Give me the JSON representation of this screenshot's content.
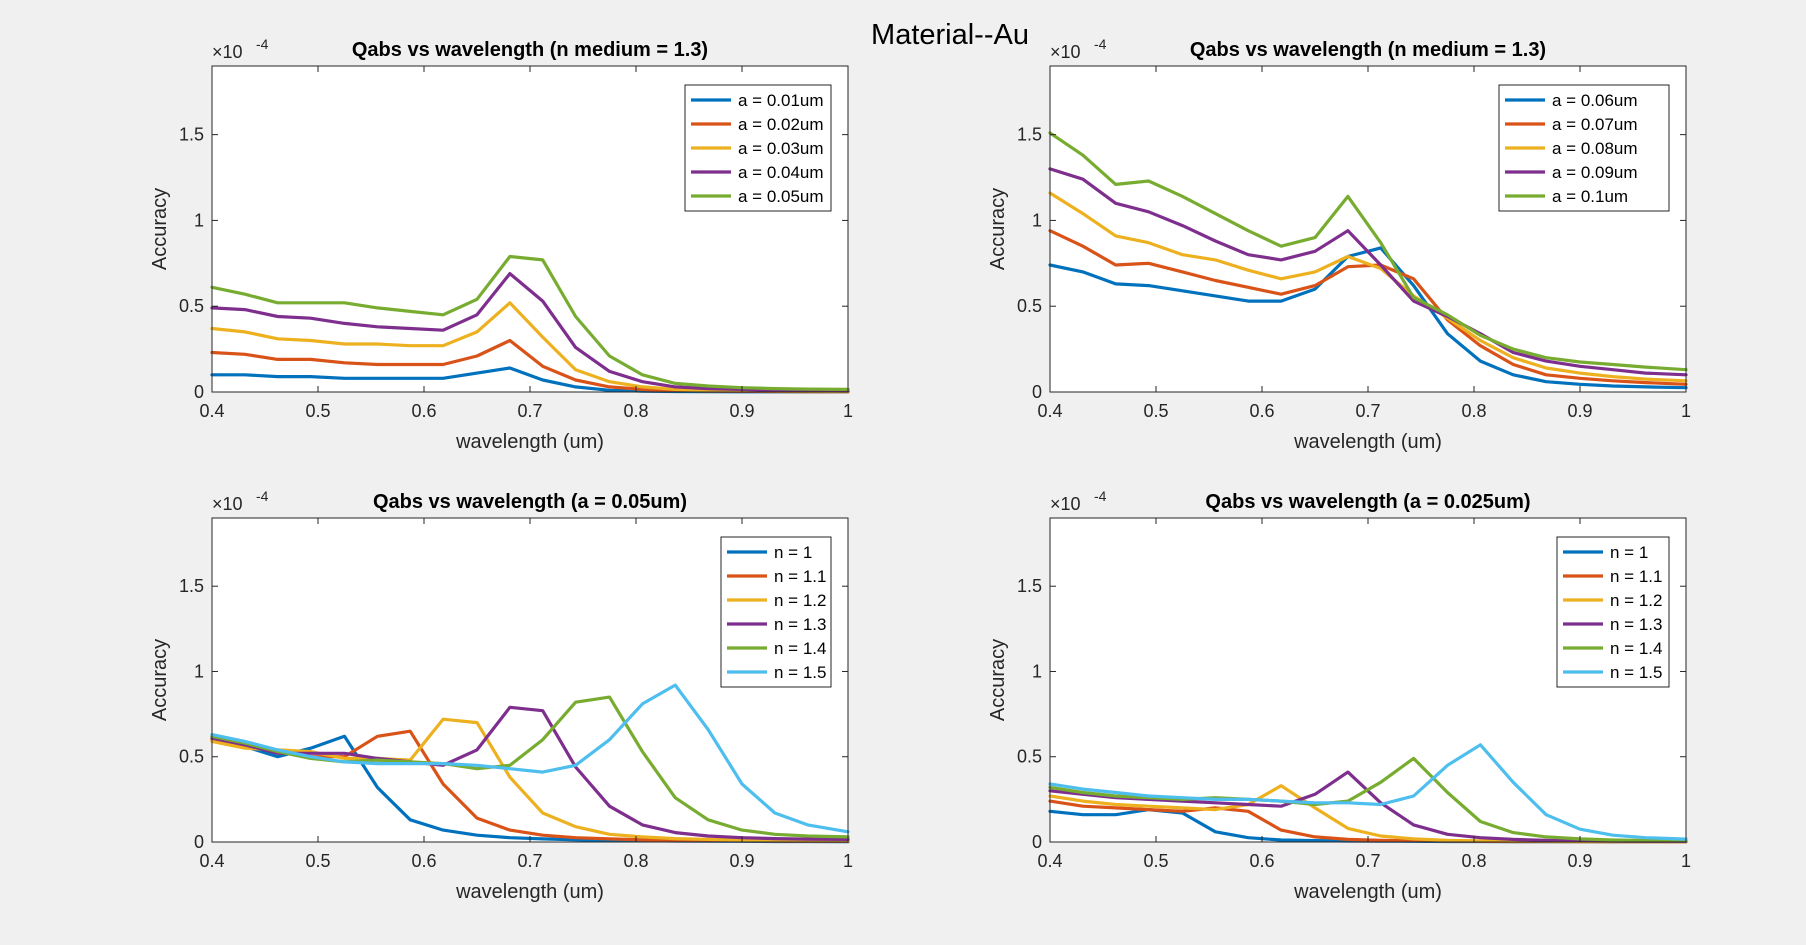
{
  "figure": {
    "suptitle": "Material--Au",
    "background": "#f0f0f0"
  },
  "colors": [
    "#0072BD",
    "#D95319",
    "#EDB120",
    "#7E2F8E",
    "#77AC30",
    "#4DBEEE"
  ],
  "chart_data": [
    {
      "type": "line",
      "title": "Qabs vs wavelength (n medium = 1.3)",
      "xlabel": "wavelength (um)",
      "ylabel": "Accuracy",
      "xlim": [
        0.4,
        1.0
      ],
      "ylim": [
        0,
        1.9
      ],
      "exponent_label": "×10",
      "exponent_power": "-4",
      "xticks": [
        0.4,
        0.5,
        0.6,
        0.7,
        0.8,
        0.9,
        1.0
      ],
      "xtick_labels": [
        "0.4",
        "0.5",
        "0.6",
        "0.7",
        "0.8",
        "0.9",
        "1"
      ],
      "yticks": [
        0,
        0.5,
        1.0,
        1.5
      ],
      "ytick_labels": [
        "0",
        "0.5",
        "1",
        "1.5"
      ],
      "grid": false,
      "legend_position": "top-right",
      "x": [
        0.4,
        0.431,
        0.462,
        0.493,
        0.525,
        0.556,
        0.587,
        0.618,
        0.65,
        0.681,
        0.712,
        0.743,
        0.775,
        0.806,
        0.837,
        0.868,
        0.9,
        0.931,
        0.962,
        1.0
      ],
      "series": [
        {
          "name": "a = 0.01um",
          "values": [
            0.1,
            0.1,
            0.09,
            0.09,
            0.08,
            0.08,
            0.08,
            0.08,
            0.11,
            0.14,
            0.07,
            0.03,
            0.01,
            0.005,
            0.003,
            0.002,
            0.001,
            0.001,
            0.001,
            0.001
          ]
        },
        {
          "name": "a = 0.02um",
          "values": [
            0.23,
            0.22,
            0.19,
            0.19,
            0.17,
            0.16,
            0.16,
            0.16,
            0.21,
            0.3,
            0.15,
            0.07,
            0.03,
            0.015,
            0.008,
            0.005,
            0.004,
            0.003,
            0.002,
            0.002
          ]
        },
        {
          "name": "a = 0.03um",
          "values": [
            0.37,
            0.35,
            0.31,
            0.3,
            0.28,
            0.28,
            0.27,
            0.27,
            0.35,
            0.52,
            0.32,
            0.13,
            0.06,
            0.03,
            0.015,
            0.01,
            0.007,
            0.005,
            0.004,
            0.003
          ]
        },
        {
          "name": "a = 0.04um",
          "values": [
            0.49,
            0.48,
            0.44,
            0.43,
            0.4,
            0.38,
            0.37,
            0.36,
            0.45,
            0.69,
            0.53,
            0.26,
            0.12,
            0.06,
            0.03,
            0.02,
            0.015,
            0.01,
            0.008,
            0.006
          ]
        },
        {
          "name": "a = 0.05um",
          "values": [
            0.61,
            0.57,
            0.52,
            0.52,
            0.52,
            0.49,
            0.47,
            0.45,
            0.54,
            0.79,
            0.77,
            0.44,
            0.21,
            0.1,
            0.05,
            0.035,
            0.025,
            0.02,
            0.017,
            0.015
          ]
        }
      ]
    },
    {
      "type": "line",
      "title": "Qabs vs wavelength (n medium = 1.3)",
      "xlabel": "wavelength (um)",
      "ylabel": "Accuracy",
      "xlim": [
        0.4,
        1.0
      ],
      "ylim": [
        0,
        1.9
      ],
      "exponent_label": "×10",
      "exponent_power": "-4",
      "xticks": [
        0.4,
        0.5,
        0.6,
        0.7,
        0.8,
        0.9,
        1.0
      ],
      "xtick_labels": [
        "0.4",
        "0.5",
        "0.6",
        "0.7",
        "0.8",
        "0.9",
        "1"
      ],
      "yticks": [
        0,
        0.5,
        1.0,
        1.5
      ],
      "ytick_labels": [
        "0",
        "0.5",
        "1",
        "1.5"
      ],
      "grid": false,
      "legend_position": "top-right",
      "x": [
        0.4,
        0.431,
        0.462,
        0.493,
        0.525,
        0.556,
        0.587,
        0.618,
        0.65,
        0.681,
        0.712,
        0.743,
        0.775,
        0.806,
        0.837,
        0.868,
        0.9,
        0.931,
        0.962,
        1.0
      ],
      "series": [
        {
          "name": "a = 0.06um",
          "values": [
            0.74,
            0.7,
            0.63,
            0.62,
            0.59,
            0.56,
            0.53,
            0.53,
            0.6,
            0.79,
            0.84,
            0.62,
            0.34,
            0.18,
            0.1,
            0.06,
            0.045,
            0.035,
            0.03,
            0.025
          ]
        },
        {
          "name": "a = 0.07um",
          "values": [
            0.94,
            0.85,
            0.74,
            0.75,
            0.7,
            0.65,
            0.61,
            0.57,
            0.62,
            0.73,
            0.74,
            0.66,
            0.42,
            0.27,
            0.16,
            0.1,
            0.08,
            0.065,
            0.055,
            0.045
          ]
        },
        {
          "name": "a = 0.08um",
          "values": [
            1.16,
            1.04,
            0.91,
            0.87,
            0.8,
            0.77,
            0.71,
            0.66,
            0.7,
            0.79,
            0.72,
            0.56,
            0.43,
            0.3,
            0.2,
            0.14,
            0.11,
            0.09,
            0.075,
            0.065
          ]
        },
        {
          "name": "a = 0.09um",
          "values": [
            1.3,
            1.24,
            1.1,
            1.05,
            0.97,
            0.88,
            0.8,
            0.77,
            0.82,
            0.94,
            0.74,
            0.53,
            0.44,
            0.34,
            0.23,
            0.18,
            0.15,
            0.13,
            0.11,
            0.1
          ]
        },
        {
          "name": "a = 0.1um",
          "values": [
            1.51,
            1.38,
            1.21,
            1.23,
            1.14,
            1.04,
            0.94,
            0.85,
            0.9,
            1.14,
            0.87,
            0.55,
            0.45,
            0.33,
            0.25,
            0.2,
            0.175,
            0.16,
            0.145,
            0.13
          ]
        }
      ]
    },
    {
      "type": "line",
      "title": "Qabs vs wavelength (a = 0.05um)",
      "xlabel": "wavelength (um)",
      "ylabel": "Accuracy",
      "xlim": [
        0.4,
        1.0
      ],
      "ylim": [
        0,
        1.9
      ],
      "exponent_label": "×10",
      "exponent_power": "-4",
      "xticks": [
        0.4,
        0.5,
        0.6,
        0.7,
        0.8,
        0.9,
        1.0
      ],
      "xtick_labels": [
        "0.4",
        "0.5",
        "0.6",
        "0.7",
        "0.8",
        "0.9",
        "1"
      ],
      "yticks": [
        0,
        0.5,
        1.0,
        1.5
      ],
      "ytick_labels": [
        "0",
        "0.5",
        "1",
        "1.5"
      ],
      "grid": false,
      "legend_position": "top-right",
      "x": [
        0.4,
        0.431,
        0.462,
        0.493,
        0.525,
        0.556,
        0.587,
        0.618,
        0.65,
        0.681,
        0.712,
        0.743,
        0.775,
        0.806,
        0.837,
        0.868,
        0.9,
        0.931,
        0.962,
        1.0
      ],
      "series": [
        {
          "name": "n = 1",
          "values": [
            0.62,
            0.56,
            0.5,
            0.55,
            0.62,
            0.32,
            0.13,
            0.07,
            0.04,
            0.025,
            0.018,
            0.013,
            0.01,
            0.008,
            0.006,
            0.005,
            0.004,
            0.003,
            0.003,
            0.002
          ]
        },
        {
          "name": "n = 1.1",
          "values": [
            0.6,
            0.56,
            0.53,
            0.5,
            0.5,
            0.62,
            0.65,
            0.34,
            0.14,
            0.07,
            0.04,
            0.025,
            0.018,
            0.013,
            0.01,
            0.008,
            0.006,
            0.005,
            0.004,
            0.004
          ]
        },
        {
          "name": "n = 1.2",
          "values": [
            0.59,
            0.55,
            0.54,
            0.53,
            0.49,
            0.49,
            0.48,
            0.72,
            0.7,
            0.38,
            0.17,
            0.09,
            0.045,
            0.03,
            0.02,
            0.015,
            0.012,
            0.01,
            0.008,
            0.007
          ]
        },
        {
          "name": "n = 1.3",
          "values": [
            0.61,
            0.57,
            0.52,
            0.52,
            0.52,
            0.49,
            0.47,
            0.45,
            0.54,
            0.79,
            0.77,
            0.44,
            0.21,
            0.1,
            0.055,
            0.035,
            0.025,
            0.02,
            0.017,
            0.015
          ]
        },
        {
          "name": "n = 1.4",
          "values": [
            0.62,
            0.58,
            0.53,
            0.49,
            0.47,
            0.48,
            0.47,
            0.46,
            0.43,
            0.45,
            0.6,
            0.82,
            0.85,
            0.53,
            0.26,
            0.13,
            0.07,
            0.045,
            0.035,
            0.03
          ]
        },
        {
          "name": "n = 1.5",
          "values": [
            0.63,
            0.59,
            0.54,
            0.5,
            0.47,
            0.46,
            0.46,
            0.46,
            0.45,
            0.43,
            0.41,
            0.45,
            0.6,
            0.81,
            0.92,
            0.66,
            0.34,
            0.17,
            0.1,
            0.06
          ]
        }
      ]
    },
    {
      "type": "line",
      "title": "Qabs vs wavelength (a = 0.025um)",
      "xlabel": "wavelength (um)",
      "ylabel": "Accuracy",
      "xlim": [
        0.4,
        1.0
      ],
      "ylim": [
        0,
        1.9
      ],
      "exponent_label": "×10",
      "exponent_power": "-4",
      "xticks": [
        0.4,
        0.5,
        0.6,
        0.7,
        0.8,
        0.9,
        1.0
      ],
      "xtick_labels": [
        "0.4",
        "0.5",
        "0.6",
        "0.7",
        "0.8",
        "0.9",
        "1"
      ],
      "yticks": [
        0,
        0.5,
        1.0,
        1.5
      ],
      "ytick_labels": [
        "0",
        "0.5",
        "1",
        "1.5"
      ],
      "grid": false,
      "legend_position": "top-right",
      "x": [
        0.4,
        0.431,
        0.462,
        0.493,
        0.525,
        0.556,
        0.587,
        0.618,
        0.65,
        0.681,
        0.712,
        0.743,
        0.775,
        0.806,
        0.837,
        0.868,
        0.9,
        0.931,
        0.962,
        1.0
      ],
      "series": [
        {
          "name": "n = 1",
          "values": [
            0.18,
            0.16,
            0.16,
            0.19,
            0.17,
            0.06,
            0.025,
            0.012,
            0.008,
            0.006,
            0.005,
            0.004,
            0.003,
            0.003,
            0.002,
            0.002,
            0.002,
            0.001,
            0.001,
            0.001
          ]
        },
        {
          "name": "n = 1.1",
          "values": [
            0.24,
            0.21,
            0.2,
            0.19,
            0.18,
            0.2,
            0.18,
            0.07,
            0.03,
            0.015,
            0.01,
            0.007,
            0.005,
            0.004,
            0.003,
            0.003,
            0.002,
            0.002,
            0.002,
            0.002
          ]
        },
        {
          "name": "n = 1.2",
          "values": [
            0.27,
            0.24,
            0.22,
            0.21,
            0.2,
            0.19,
            0.22,
            0.33,
            0.2,
            0.08,
            0.035,
            0.018,
            0.01,
            0.007,
            0.005,
            0.004,
            0.003,
            0.003,
            0.002,
            0.002
          ]
        },
        {
          "name": "n = 1.3",
          "values": [
            0.3,
            0.28,
            0.26,
            0.25,
            0.24,
            0.23,
            0.22,
            0.21,
            0.28,
            0.41,
            0.23,
            0.1,
            0.045,
            0.025,
            0.015,
            0.01,
            0.007,
            0.005,
            0.004,
            0.004
          ]
        },
        {
          "name": "n = 1.4",
          "values": [
            0.32,
            0.29,
            0.27,
            0.26,
            0.25,
            0.26,
            0.25,
            0.24,
            0.22,
            0.24,
            0.35,
            0.49,
            0.29,
            0.12,
            0.055,
            0.03,
            0.018,
            0.012,
            0.009,
            0.007
          ]
        },
        {
          "name": "n = 1.5",
          "values": [
            0.34,
            0.31,
            0.29,
            0.27,
            0.26,
            0.25,
            0.25,
            0.24,
            0.23,
            0.23,
            0.22,
            0.27,
            0.45,
            0.57,
            0.35,
            0.16,
            0.075,
            0.04,
            0.025,
            0.017
          ]
        }
      ]
    }
  ]
}
